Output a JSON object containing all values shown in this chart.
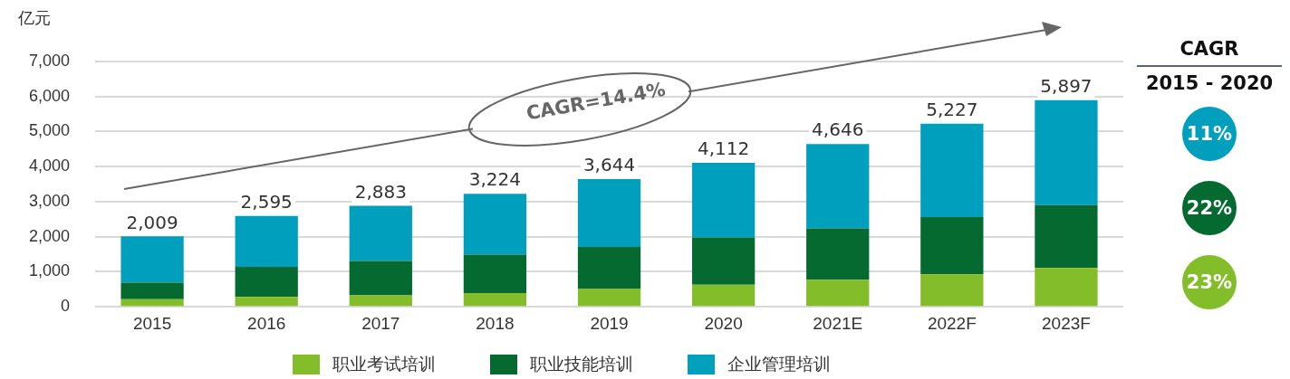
{
  "chart_data": {
    "type": "bar",
    "stacked": true,
    "ylabel": "亿元",
    "categories": [
      "2015",
      "2016",
      "2017",
      "2018",
      "2019",
      "2020",
      "2021E",
      "2022F",
      "2023F"
    ],
    "series": [
      {
        "name": "职业考试培训",
        "color": "#84bd2a",
        "values": [
          220,
          280,
          330,
          390,
          510,
          630,
          770,
          930,
          1110
        ]
      },
      {
        "name": "职业技能培训",
        "color": "#046a2f",
        "values": [
          470,
          860,
          980,
          1100,
          1200,
          1350,
          1470,
          1630,
          1790
        ]
      },
      {
        "name": "企业管理培训",
        "color": "#009fbd",
        "values": [
          1319,
          1455,
          1573,
          1734,
          1934,
          2132,
          2406,
          2667,
          2997
        ]
      }
    ],
    "totals": [
      "2,009",
      "2,595",
      "2,883",
      "3,224",
      "3,644",
      "4,112",
      "4,646",
      "5,227",
      "5,897"
    ],
    "ylim": [
      0,
      7000
    ],
    "yticks": [
      {
        "value": 0,
        "label": "0"
      },
      {
        "value": 1000,
        "label": "1,000"
      },
      {
        "value": 2000,
        "label": "2,000"
      },
      {
        "value": 3000,
        "label": "3,000"
      },
      {
        "value": 4000,
        "label": "4,000"
      },
      {
        "value": 5000,
        "label": "5,000"
      },
      {
        "value": 6000,
        "label": "6,000"
      },
      {
        "value": 7000,
        "label": "7,000"
      }
    ],
    "grid": "y",
    "legend": "bottom",
    "annotations": [
      "CAGR=14.4%",
      "CAGR",
      "2015 - 2020",
      "11%",
      "22%",
      "23%"
    ]
  }
}
